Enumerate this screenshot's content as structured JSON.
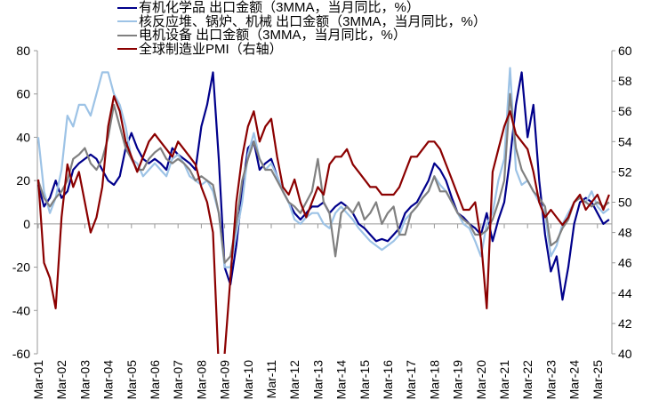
{
  "chart_data": {
    "type": "line",
    "title": "",
    "legend_position": "top",
    "grid": false,
    "x_ticks": [
      "Mar-01",
      "Mar-02",
      "Mar-03",
      "Mar-04",
      "Mar-05",
      "Mar-06",
      "Mar-07",
      "Mar-08",
      "Mar-09",
      "Mar-10",
      "Mar-11",
      "Mar-12",
      "Mar-13",
      "Mar-14",
      "Mar-15",
      "Mar-16",
      "Mar-17",
      "Mar-18",
      "Mar-19",
      "Mar-20",
      "Mar-21",
      "Mar-22",
      "Mar-23",
      "Mar-24",
      "Mar-25"
    ],
    "x_start": "2001-03",
    "x_frequency": "quarterly",
    "y_left": {
      "ylim": [
        -60,
        80
      ],
      "ticks": [
        "80",
        "60",
        "40",
        "20",
        "0",
        "-20",
        "-40",
        "-60"
      ]
    },
    "y_right": {
      "ylim": [
        40,
        60
      ],
      "ticks": [
        "60",
        "58",
        "56",
        "54",
        "52",
        "50",
        "48",
        "46",
        "44",
        "42",
        "40"
      ]
    },
    "series": [
      {
        "name": "有机化学品 出口金额（3MMA，当月同比，%）",
        "axis": "left",
        "color": "#00008B",
        "values": [
          18,
          8,
          12,
          20,
          12,
          15,
          25,
          28,
          30,
          32,
          30,
          25,
          20,
          18,
          22,
          35,
          42,
          35,
          30,
          28,
          30,
          28,
          25,
          35,
          32,
          30,
          28,
          25,
          45,
          55,
          70,
          30,
          -20,
          -28,
          -10,
          15,
          35,
          38,
          25,
          28,
          30,
          22,
          15,
          10,
          5,
          2,
          5,
          8,
          8,
          10,
          5,
          8,
          10,
          8,
          5,
          0,
          -2,
          -5,
          -8,
          -7,
          -8,
          -5,
          -2,
          5,
          8,
          10,
          15,
          20,
          28,
          25,
          20,
          12,
          5,
          3,
          0,
          -2,
          -5,
          5,
          -8,
          2,
          10,
          30,
          55,
          70,
          40,
          55,
          20,
          -5,
          -22,
          -15,
          -35,
          -20,
          0,
          10,
          12,
          10,
          5,
          0,
          2
        ]
      },
      {
        "name": "核反应堆、锅炉、机械 出口金额（3MMA，当月同比，%）",
        "axis": "left",
        "color": "#9DC3E6",
        "values": [
          40,
          15,
          5,
          12,
          25,
          50,
          45,
          55,
          55,
          50,
          60,
          70,
          70,
          60,
          55,
          45,
          30,
          28,
          22,
          25,
          28,
          25,
          22,
          30,
          32,
          28,
          22,
          20,
          18,
          20,
          15,
          5,
          -20,
          -20,
          -5,
          10,
          32,
          42,
          30,
          25,
          28,
          22,
          15,
          10,
          2,
          0,
          3,
          5,
          5,
          0,
          -2,
          5,
          8,
          5,
          2,
          -2,
          -5,
          -8,
          -10,
          -12,
          -10,
          -8,
          -5,
          2,
          5,
          8,
          12,
          15,
          22,
          18,
          15,
          10,
          5,
          0,
          -2,
          -8,
          -15,
          0,
          5,
          20,
          30,
          72,
          25,
          18,
          20,
          15,
          10,
          5,
          -15,
          -10,
          0,
          5,
          10,
          12,
          10,
          15,
          8,
          5,
          7
        ]
      },
      {
        "name": "电机设备 出口金额（3MMA，当月同比，%）",
        "axis": "left",
        "color": "#808080",
        "values": [
          20,
          12,
          8,
          12,
          15,
          20,
          30,
          32,
          35,
          28,
          25,
          30,
          40,
          55,
          45,
          35,
          30,
          25,
          25,
          30,
          33,
          35,
          30,
          28,
          30,
          28,
          25,
          20,
          22,
          20,
          18,
          5,
          -18,
          -15,
          0,
          20,
          30,
          38,
          30,
          25,
          25,
          20,
          15,
          10,
          8,
          5,
          10,
          15,
          30,
          10,
          5,
          -15,
          5,
          8,
          5,
          10,
          2,
          5,
          10,
          0,
          5,
          8,
          -5,
          -5,
          5,
          8,
          12,
          15,
          22,
          15,
          15,
          10,
          5,
          2,
          0,
          -5,
          -5,
          -3,
          2,
          10,
          20,
          60,
          35,
          25,
          20,
          15,
          12,
          8,
          -10,
          -8,
          -2,
          2,
          10,
          12,
          10,
          8,
          10,
          8,
          10
        ]
      },
      {
        "name": "全球制造业PMI（右轴）",
        "axis": "right",
        "color": "#8B0000",
        "values": [
          51.5,
          46,
          45,
          43,
          49,
          52.5,
          51,
          52,
          50,
          48,
          49,
          51,
          55,
          57,
          56,
          54,
          53,
          52,
          53,
          54,
          54.5,
          54,
          53.5,
          53,
          54,
          53.5,
          53,
          52.5,
          51,
          50,
          48,
          39,
          40,
          45,
          50,
          53,
          55,
          56,
          54,
          55,
          55.5,
          53,
          51,
          50.5,
          51.5,
          50,
          49,
          50,
          51,
          50.5,
          52.5,
          53,
          53,
          53.5,
          52.5,
          52,
          51.5,
          51,
          51,
          50.5,
          50.5,
          50.5,
          51,
          52,
          53,
          53,
          53.5,
          54,
          54,
          53.5,
          52.5,
          51.5,
          50.5,
          49.5,
          49.5,
          50,
          47.5,
          43,
          52,
          53.5,
          55,
          56,
          54.5,
          54,
          53.5,
          52,
          50,
          49,
          49.5,
          49,
          48.5,
          49,
          50,
          50.5,
          49.5,
          50,
          50.5,
          49.5,
          50.5
        ]
      }
    ]
  }
}
